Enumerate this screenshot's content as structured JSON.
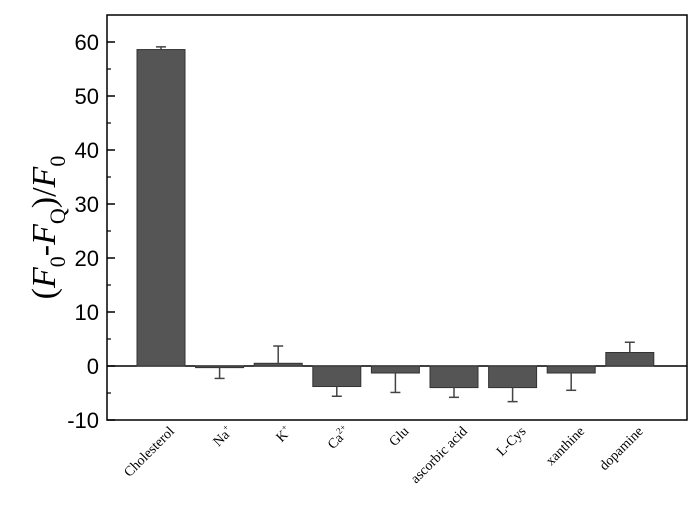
{
  "chart_data": {
    "type": "bar",
    "title": "",
    "xlabel": "",
    "ylabel": "(F0-FQ)/F0",
    "ylim": [
      -10,
      65
    ],
    "yticks": [
      -10,
      0,
      10,
      20,
      30,
      40,
      50,
      60
    ],
    "ytick_labels": [
      "-10",
      "0",
      "10",
      "20",
      "30",
      "40",
      "50",
      "60"
    ],
    "categories": [
      "Cholesterol",
      "Na+",
      "K+",
      "Ca2+",
      "Glu",
      "ascorbic acid",
      "L-Cys",
      "xanthine",
      "dopamine"
    ],
    "values": [
      58.6,
      -0.3,
      0.5,
      -3.8,
      -1.3,
      -4.0,
      -4.0,
      -1.3,
      2.5
    ],
    "error": [
      0.5,
      2.0,
      3.2,
      1.8,
      3.6,
      1.8,
      2.6,
      3.2,
      1.9
    ],
    "bar_color": "#555555",
    "zero_line": true,
    "grid": false
  }
}
